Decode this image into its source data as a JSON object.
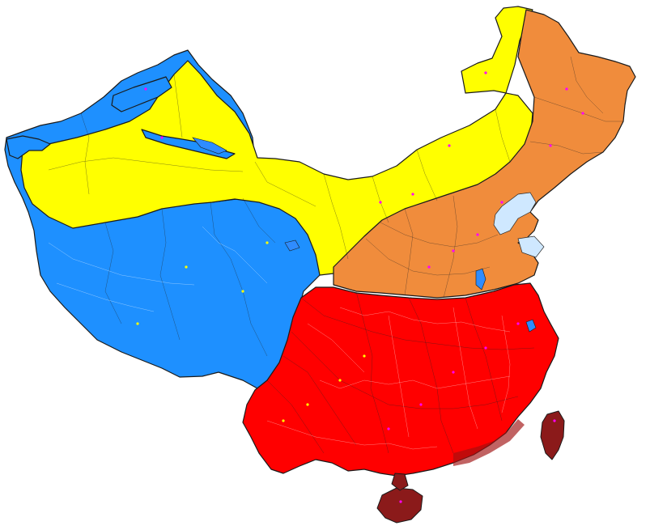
{
  "map": {
    "colors": {
      "blue": "#1e90ff",
      "yellow": "#ffff00",
      "orange": "#f08c3c",
      "red": "#ff0000",
      "dark_red": "#8b1a1a",
      "lake": "#2f8cff",
      "background": "#ffffff"
    },
    "regions": [
      {
        "id": "west",
        "color": "blue"
      },
      {
        "id": "north-desert",
        "color": "yellow"
      },
      {
        "id": "northeast",
        "color": "orange"
      },
      {
        "id": "south",
        "color": "red"
      },
      {
        "id": "islands",
        "color": "dark_red"
      }
    ]
  }
}
